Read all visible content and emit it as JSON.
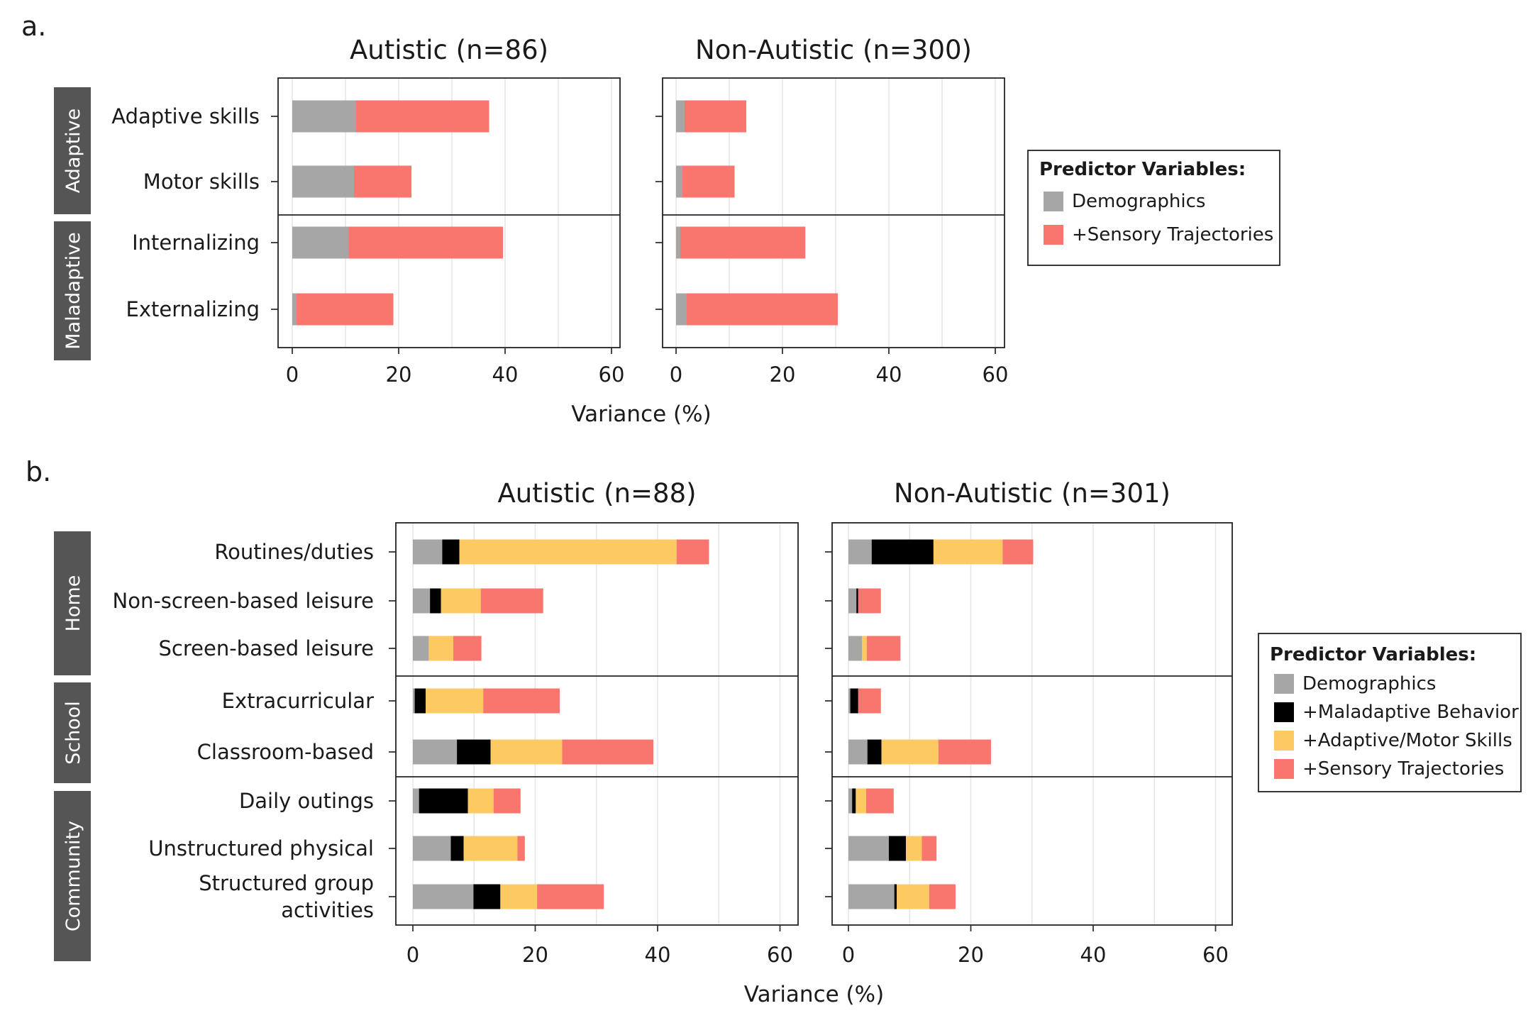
{
  "colors": {
    "demographics": "#a6a6a6",
    "maladaptive": "#000000",
    "adaptive_motor": "#fdc962",
    "sensory": "#f8766d",
    "strip": "#555555"
  },
  "labels": {
    "panel_a": "a.",
    "panel_b": "b."
  },
  "chart_data": [
    {
      "type": "bar",
      "orientation": "horizontal",
      "stacked": true,
      "panel": "a.",
      "xlabel": "Variance (%)",
      "xlim": [
        0,
        63
      ],
      "xticks": [
        0,
        20,
        40,
        60
      ],
      "legend": {
        "title": "Predictor Variables:",
        "position": "right",
        "entries": [
          {
            "name": "Demographics",
            "color": "#a6a6a6"
          },
          {
            "name": "+Sensory Trajectories",
            "color": "#f8766d"
          }
        ]
      },
      "groups": [
        {
          "label": "Adaptive",
          "categories": [
            "Adaptive skills",
            "Motor skills"
          ]
        },
        {
          "label": "Maladaptive",
          "categories": [
            "Internalizing",
            "Externalizing"
          ]
        }
      ],
      "facets": [
        {
          "title": "Autistic (n=86)",
          "rows": [
            {
              "category": "Adaptive skills",
              "segments": [
                12,
                25
              ]
            },
            {
              "category": "Motor skills",
              "segments": [
                11.6,
                10.8
              ]
            },
            {
              "category": "Internalizing",
              "segments": [
                10.6,
                29
              ]
            },
            {
              "category": "Externalizing",
              "segments": [
                0.8,
                18.2
              ]
            }
          ]
        },
        {
          "title": "Non-Autistic (n=300)",
          "rows": [
            {
              "category": "Adaptive skills",
              "segments": [
                1.6,
                11.6
              ]
            },
            {
              "category": "Motor skills",
              "segments": [
                1.2,
                9.8
              ]
            },
            {
              "category": "Internalizing",
              "segments": [
                0.8,
                23.5
              ]
            },
            {
              "category": "Externalizing",
              "segments": [
                2,
                28.4
              ]
            }
          ]
        }
      ]
    },
    {
      "type": "bar",
      "orientation": "horizontal",
      "stacked": true,
      "panel": "b.",
      "xlabel": "Variance (%)",
      "xlim": [
        0,
        61.5
      ],
      "xticks": [
        0,
        20,
        40,
        60
      ],
      "legend": {
        "title": "Predictor Variables:",
        "position": "right",
        "entries": [
          {
            "name": "Demographics",
            "color": "#a6a6a6"
          },
          {
            "name": "+Maladaptive Behavior",
            "color": "#000000"
          },
          {
            "name": "+Adaptive/Motor Skills",
            "color": "#fdc962"
          },
          {
            "name": "+Sensory Trajectories",
            "color": "#f8766d"
          }
        ]
      },
      "groups": [
        {
          "label": "Home",
          "categories": [
            "Routines/duties",
            "Non-screen-based leisure",
            "Screen-based leisure"
          ]
        },
        {
          "label": "School",
          "categories": [
            "Extracurricular",
            "Classroom-based"
          ]
        },
        {
          "label": "Community",
          "categories": [
            "Daily outings",
            "Unstructured physical",
            "Structured group\nactivities"
          ]
        }
      ],
      "facets": [
        {
          "title": "Autistic (n=88)",
          "rows": [
            {
              "category": "Routines/duties",
              "segments": [
                4.8,
                2.8,
                35.5,
                5.3
              ]
            },
            {
              "category": "Non-screen-based leisure",
              "segments": [
                2.8,
                1.8,
                6.5,
                10.2
              ]
            },
            {
              "category": "Screen-based leisure",
              "segments": [
                2.6,
                0,
                4,
                4.6
              ]
            },
            {
              "category": "Extracurricular",
              "segments": [
                0.3,
                1.8,
                9.4,
                12.5
              ]
            },
            {
              "category": "Classroom-based",
              "segments": [
                7.2,
                5.5,
                11.7,
                14.9
              ]
            },
            {
              "category": "Daily outings",
              "segments": [
                1,
                8,
                4.2,
                4.4
              ]
            },
            {
              "category": "Unstructured physical",
              "segments": [
                6.2,
                2.1,
                8.8,
                1.2
              ]
            },
            {
              "category": "Structured group\nactivities",
              "segments": [
                9.9,
                4.4,
                6,
                10.9
              ]
            }
          ]
        },
        {
          "title": "Non-Autistic (n=301)",
          "rows": [
            {
              "category": "Routines/duties",
              "segments": [
                3.8,
                10.1,
                11.3,
                5
              ]
            },
            {
              "category": "Non-screen-based leisure",
              "segments": [
                1.3,
                0.3,
                0,
                3.7
              ]
            },
            {
              "category": "Screen-based leisure",
              "segments": [
                2.2,
                0,
                0.8,
                5.5
              ]
            },
            {
              "category": "Extracurricular",
              "segments": [
                0.3,
                1.3,
                0,
                3.7
              ]
            },
            {
              "category": "Classroom-based",
              "segments": [
                3.1,
                2.3,
                9.3,
                8.6
              ]
            },
            {
              "category": "Daily outings",
              "segments": [
                0.6,
                0.6,
                1.7,
                4.5
              ]
            },
            {
              "category": "Unstructured physical",
              "segments": [
                6.6,
                2.8,
                2.6,
                2.4
              ]
            },
            {
              "category": "Structured group\nactivities",
              "segments": [
                7.5,
                0.4,
                5.3,
                4.3
              ]
            }
          ]
        }
      ]
    }
  ]
}
